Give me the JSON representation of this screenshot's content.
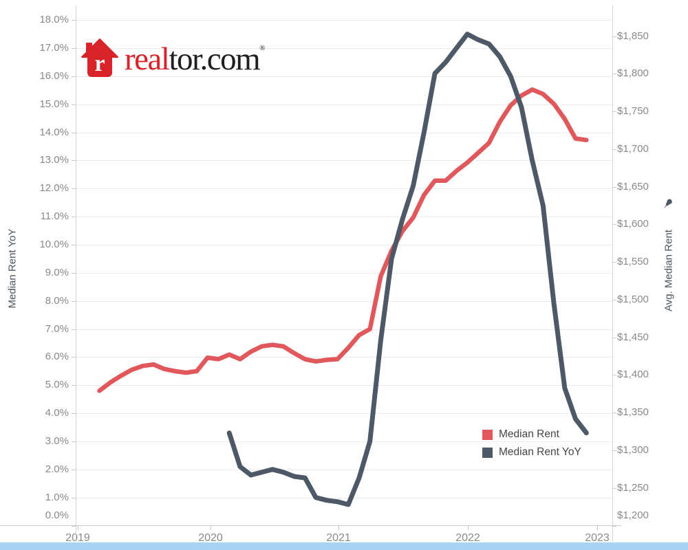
{
  "logo": {
    "text_red": "real",
    "text_black": "tor.com",
    "registered_mark": "®",
    "brand_red": "#d8232a"
  },
  "left_axis": {
    "title": "Median Rent YoY",
    "ticks": [
      "18.0%",
      "17.0%",
      "16.0%",
      "15.0%",
      "14.0%",
      "13.0%",
      "12.0%",
      "11.0%",
      "10.0%",
      "9.0%",
      "8.0%",
      "7.0%",
      "6.0%",
      "5.0%",
      "4.0%",
      "3.0%",
      "2.0%",
      "1.0%",
      "0.0%"
    ]
  },
  "right_axis": {
    "title": "Avg. Median Rent",
    "pin_icon": "pushpin-icon",
    "ticks": [
      "$1,850",
      "$1,800",
      "$1,750",
      "$1,700",
      "$1,650",
      "$1,600",
      "$1,550",
      "$1,500",
      "$1,450",
      "$1,400",
      "$1,350",
      "$1,300",
      "$1,250",
      "$1,200"
    ]
  },
  "x_axis": {
    "ticks": [
      "2019",
      "2020",
      "2021",
      "2022",
      "2023"
    ]
  },
  "legend": [
    {
      "label": "Median Rent",
      "color": "#e0585b"
    },
    {
      "label": "Median Rent YoY",
      "color": "#4d5966"
    }
  ],
  "colors": {
    "median_rent_line": "#e0585b",
    "median_rent_yoy_line": "#4d5966",
    "gridline": "#ebebeb",
    "tick_text": "#898989",
    "bottom_bar": "#a9d3f2"
  },
  "chart_data": {
    "type": "line",
    "x_unit": "month",
    "x_range": [
      "2019-01",
      "2023-01"
    ],
    "grid": "horizontal",
    "legend_position": "inside-bottom-right",
    "left_axis": {
      "label": "Median Rent YoY",
      "min": 0,
      "max": 18.5,
      "tick_step": 1,
      "format": "percent"
    },
    "right_axis": {
      "label": "Avg. Median Rent",
      "min": 1200,
      "max": 1890,
      "tick_step": 50,
      "format": "usd"
    },
    "series": [
      {
        "name": "Median Rent",
        "axis": "right",
        "color": "#e0585b",
        "start_month": "2019-03",
        "values": [
          1379,
          1390,
          1399,
          1407,
          1412,
          1414,
          1408,
          1405,
          1403,
          1405,
          1423,
          1421,
          1427,
          1421,
          1431,
          1438,
          1440,
          1438,
          1429,
          1421,
          1418,
          1420,
          1421,
          1436,
          1453,
          1461,
          1531,
          1565,
          1591,
          1609,
          1639,
          1658,
          1658,
          1671,
          1682,
          1695,
          1708,
          1736,
          1758,
          1771,
          1779,
          1773,
          1760,
          1740,
          1714,
          1712
        ]
      },
      {
        "name": "Median Rent YoY",
        "axis": "left",
        "color": "#4d5966",
        "start_month": "2020-03",
        "values": [
          3.3,
          2.1,
          1.8,
          1.9,
          2.0,
          1.9,
          1.75,
          1.7,
          1.0,
          0.9,
          0.85,
          0.75,
          1.7,
          3.0,
          6.6,
          9.5,
          10.9,
          12.1,
          14.0,
          16.1,
          16.5,
          17.0,
          17.5,
          17.3,
          17.15,
          16.7,
          16.0,
          14.9,
          13.0,
          11.4,
          7.9,
          4.9,
          3.8,
          3.3
        ]
      }
    ]
  }
}
